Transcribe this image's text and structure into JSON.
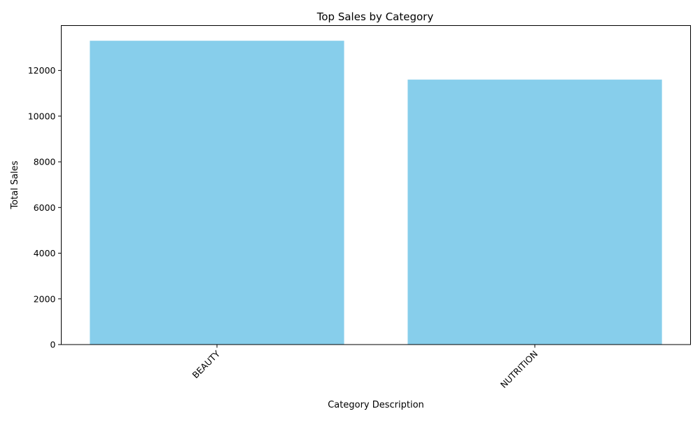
{
  "colors": {
    "bar": "#87ceeb",
    "axis": "#000000",
    "background": "#ffffff"
  },
  "chart_data": {
    "type": "bar",
    "title": "Top Sales by Category",
    "xlabel": "Category Description",
    "ylabel": "Total Sales",
    "categories": [
      "BEAUTY",
      "NUTRITION"
    ],
    "values": [
      13300,
      11600
    ],
    "ylim": [
      0,
      13965
    ],
    "yticks": [
      0,
      2000,
      4000,
      6000,
      8000,
      10000,
      12000
    ],
    "ytick_labels": [
      "0",
      "2000",
      "4000",
      "6000",
      "8000",
      "10000",
      "12000"
    ],
    "xtick_rotation": "45 degrees",
    "grid": false,
    "legend": "none"
  }
}
